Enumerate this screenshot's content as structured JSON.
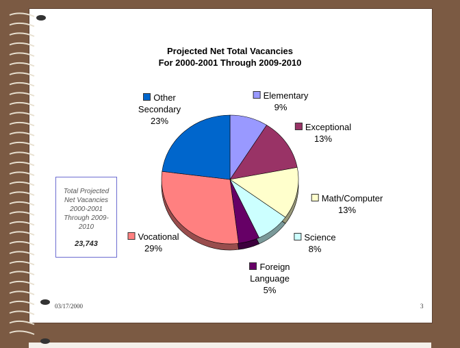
{
  "chart_data": {
    "type": "pie",
    "title": "Projected Net Total Vacancies",
    "subtitle": "For 2000-2001 Through 2009-2010",
    "categories": [
      "Elementary",
      "Exceptional",
      "Math/Computer",
      "Science",
      "Foreign Language",
      "Vocational",
      "Other Secondary"
    ],
    "values": [
      9,
      13,
      13,
      8,
      5,
      29,
      23
    ],
    "value_labels": [
      "9%",
      "13%",
      "13%",
      "8%",
      "5%",
      "29%",
      "23%"
    ],
    "colors": [
      "#9999ff",
      "#993366",
      "#ffffcc",
      "#ccffff",
      "#660066",
      "#ff8080",
      "#0066cc"
    ],
    "note": {
      "text": "Total Projected Net Vacancies 2000-2001 Through 2009-2010",
      "total": "23,743"
    }
  },
  "footer": {
    "date": "03/17/2000",
    "page": "3"
  }
}
